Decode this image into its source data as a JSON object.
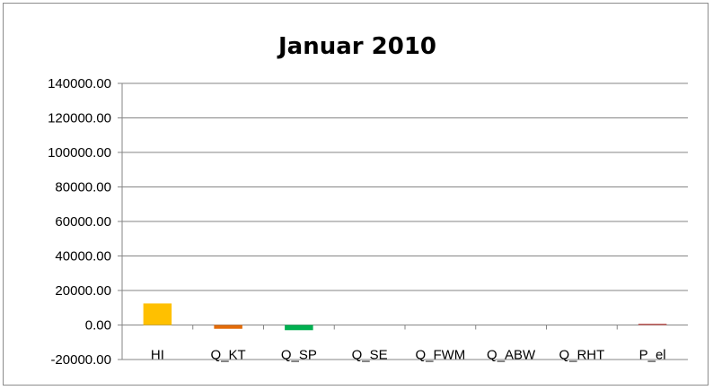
{
  "chart_data": {
    "type": "bar",
    "title": "Januar 2010",
    "xlabel": "",
    "ylabel": "",
    "categories": [
      "HI",
      "Q_KT",
      "Q_SP",
      "Q_SE",
      "Q_FWM",
      "Q_ABW",
      "Q_RHT",
      "P_el"
    ],
    "values": [
      12500,
      -2200,
      -3000,
      0,
      0,
      0,
      0,
      700
    ],
    "bar_colors": [
      "#ffc000",
      "#e36c09",
      "#00b050",
      "#4f81bd",
      "#4f81bd",
      "#4f81bd",
      "#4f81bd",
      "#c0504d"
    ],
    "ylim": [
      -20000,
      140000
    ],
    "yticks": [
      "140000.00",
      "120000.00",
      "100000.00",
      "80000.00",
      "60000.00",
      "40000.00",
      "20000.00",
      "0.00",
      "-20000.00"
    ],
    "ytick_values": [
      140000,
      120000,
      100000,
      80000,
      60000,
      40000,
      20000,
      0,
      -20000
    ],
    "grid": true,
    "legend": "none",
    "gridline_color": "#868686"
  }
}
